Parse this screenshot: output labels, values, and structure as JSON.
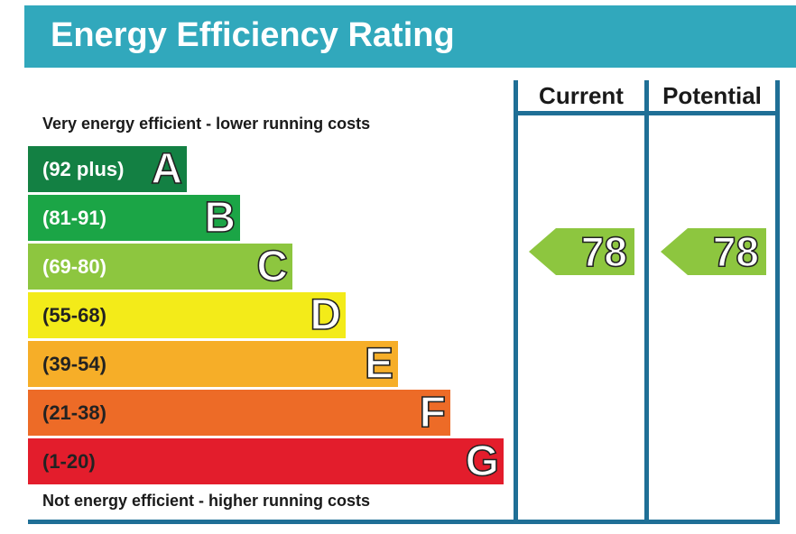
{
  "chart_data": {
    "type": "bar",
    "title": "Energy Efficiency Rating",
    "caption_top": "Very energy efficient - lower running costs",
    "caption_bottom": "Not energy efficient - higher running costs",
    "bands": [
      {
        "letter": "A",
        "range": "(92 plus)",
        "color": "#138043"
      },
      {
        "letter": "B",
        "range": "(81-91)",
        "color": "#1ba546"
      },
      {
        "letter": "C",
        "range": "(69-80)",
        "color": "#8dc63f"
      },
      {
        "letter": "D",
        "range": "(55-68)",
        "color": "#f3eb19"
      },
      {
        "letter": "E",
        "range": "(39-54)",
        "color": "#f6ae28"
      },
      {
        "letter": "F",
        "range": "(21-38)",
        "color": "#ed6b27"
      },
      {
        "letter": "G",
        "range": "(1-20)",
        "color": "#e31d2c"
      }
    ],
    "columns": [
      "Current",
      "Potential"
    ],
    "current": {
      "value": "78",
      "band": "C"
    },
    "potential": {
      "value": "78",
      "band": "C"
    },
    "colors": {
      "header": "#31a8bc",
      "frame": "#1f6f96",
      "rating": "#8dc63f"
    }
  }
}
